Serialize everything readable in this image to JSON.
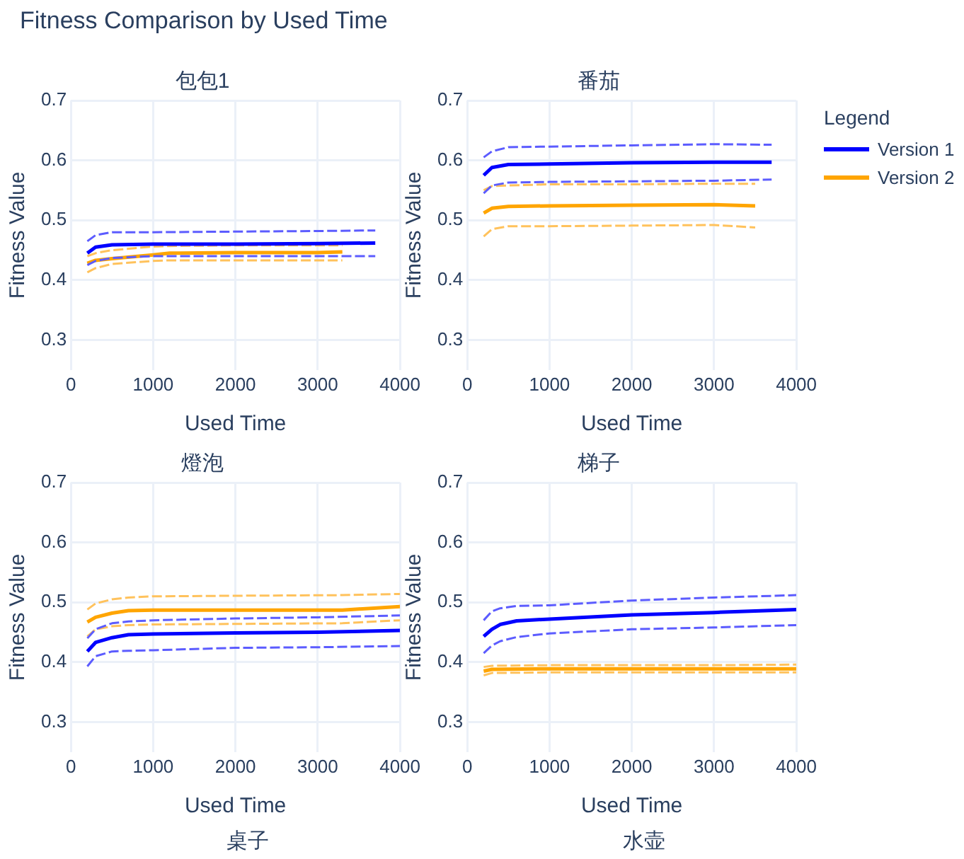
{
  "chart_data": [
    {
      "type": "line",
      "title": "包包1",
      "annotations": [
        "Fitness Comparison by Used Time"
      ],
      "xlabel": "Used Time",
      "ylabel": "Fitness Value",
      "xlim": [
        0,
        4000
      ],
      "xticks": [
        0,
        1000,
        2000,
        3000,
        4000
      ],
      "ylim": [
        0.25,
        0.7
      ],
      "yticks": [
        0.3,
        0.4,
        0.5,
        0.6,
        0.7
      ],
      "grid": true,
      "series": [
        {
          "color": "#0000ff",
          "x": [
            200,
            300,
            500,
            1000,
            2000,
            3000,
            3700
          ],
          "values": [
            0.445,
            0.455,
            0.459,
            0.46,
            0.46,
            0.461,
            0.462
          ]
        },
        {
          "color": "#5c5cff",
          "line_style": "dashed",
          "x": [
            200,
            300,
            500,
            1000,
            2000,
            3000,
            3700
          ],
          "values": [
            0.465,
            0.475,
            0.48,
            0.48,
            0.481,
            0.482,
            0.483
          ]
        },
        {
          "color": "#5c5cff",
          "line_style": "dashed",
          "x": [
            200,
            300,
            500,
            1000,
            2000,
            3000,
            3700
          ],
          "values": [
            0.425,
            0.432,
            0.437,
            0.44,
            0.44,
            0.44,
            0.44
          ]
        },
        {
          "color": "#ffa500",
          "x": [
            200,
            300,
            500,
            1000,
            1200,
            2000,
            3000,
            3300
          ],
          "values": [
            0.428,
            0.433,
            0.436,
            0.442,
            0.445,
            0.446,
            0.446,
            0.447
          ]
        },
        {
          "color": "#ffc25c",
          "line_style": "dashed",
          "x": [
            200,
            300,
            500,
            1000,
            1200,
            2000,
            3000,
            3300
          ],
          "values": [
            0.44,
            0.445,
            0.45,
            0.456,
            0.457,
            0.458,
            0.458,
            0.458
          ]
        },
        {
          "color": "#ffc25c",
          "line_style": "dashed",
          "x": [
            200,
            300,
            500,
            1000,
            1200,
            2000,
            3000,
            3300
          ],
          "values": [
            0.413,
            0.42,
            0.427,
            0.432,
            0.433,
            0.433,
            0.433,
            0.433
          ]
        }
      ]
    },
    {
      "type": "line",
      "title": "番茄",
      "xlabel": "Used Time",
      "ylabel": "Fitness Value",
      "xlim": [
        0,
        4000
      ],
      "xticks": [
        0,
        1000,
        2000,
        3000,
        4000
      ],
      "ylim": [
        0.25,
        0.7
      ],
      "yticks": [
        0.3,
        0.4,
        0.5,
        0.6,
        0.7
      ],
      "grid": true,
      "legend": "right",
      "legend_title": "Legend",
      "series": [
        {
          "name": "Version 1",
          "color": "#0000ff",
          "x": [
            200,
            300,
            500,
            1000,
            2000,
            3000,
            3700
          ],
          "values": [
            0.575,
            0.588,
            0.593,
            0.594,
            0.596,
            0.597,
            0.597
          ]
        },
        {
          "color": "#5c5cff",
          "line_style": "dashed",
          "x": [
            200,
            300,
            500,
            1000,
            2000,
            3000,
            3700
          ],
          "values": [
            0.605,
            0.615,
            0.622,
            0.623,
            0.625,
            0.627,
            0.626
          ]
        },
        {
          "color": "#5c5cff",
          "line_style": "dashed",
          "x": [
            200,
            300,
            500,
            1000,
            2000,
            3000,
            3700
          ],
          "values": [
            0.545,
            0.558,
            0.563,
            0.564,
            0.565,
            0.566,
            0.568
          ]
        },
        {
          "name": "Version 2",
          "color": "#ffa500",
          "x": [
            200,
            300,
            500,
            1000,
            2000,
            3000,
            3500
          ],
          "values": [
            0.512,
            0.52,
            0.523,
            0.524,
            0.525,
            0.526,
            0.524
          ]
        },
        {
          "color": "#ffc25c",
          "line_style": "dashed",
          "x": [
            200,
            300,
            500,
            1000,
            2000,
            3000,
            3500
          ],
          "values": [
            0.55,
            0.557,
            0.558,
            0.56,
            0.56,
            0.561,
            0.561
          ]
        },
        {
          "color": "#ffc25c",
          "line_style": "dashed",
          "x": [
            200,
            300,
            500,
            1000,
            2000,
            3000,
            3500
          ],
          "values": [
            0.473,
            0.485,
            0.49,
            0.49,
            0.491,
            0.492,
            0.488
          ]
        }
      ]
    },
    {
      "type": "line",
      "title": "燈泡",
      "xlabel": "Used Time",
      "ylabel": "Fitness Value",
      "xlim": [
        0,
        4000
      ],
      "xticks": [
        0,
        1000,
        2000,
        3000,
        4000
      ],
      "ylim": [
        0.25,
        0.7
      ],
      "yticks": [
        0.3,
        0.4,
        0.5,
        0.6,
        0.7
      ],
      "grid": true,
      "series": [
        {
          "color": "#0000ff",
          "x": [
            200,
            300,
            500,
            700,
            1000,
            2000,
            3000,
            4000
          ],
          "values": [
            0.418,
            0.433,
            0.441,
            0.446,
            0.447,
            0.449,
            0.45,
            0.453
          ]
        },
        {
          "color": "#5c5cff",
          "line_style": "dashed",
          "x": [
            200,
            300,
            500,
            700,
            1000,
            2000,
            3000,
            4000
          ],
          "values": [
            0.44,
            0.455,
            0.465,
            0.468,
            0.47,
            0.473,
            0.475,
            0.478
          ]
        },
        {
          "color": "#5c5cff",
          "line_style": "dashed",
          "x": [
            200,
            300,
            500,
            700,
            1000,
            2000,
            3000,
            4000
          ],
          "values": [
            0.393,
            0.41,
            0.418,
            0.419,
            0.42,
            0.424,
            0.425,
            0.427
          ]
        },
        {
          "color": "#ffa500",
          "x": [
            200,
            300,
            500,
            700,
            1000,
            2000,
            3300,
            4000
          ],
          "values": [
            0.467,
            0.475,
            0.482,
            0.486,
            0.487,
            0.487,
            0.487,
            0.493
          ]
        },
        {
          "color": "#ffc25c",
          "line_style": "dashed",
          "x": [
            200,
            300,
            500,
            700,
            1000,
            2000,
            3300,
            4000
          ],
          "values": [
            0.488,
            0.498,
            0.505,
            0.508,
            0.51,
            0.511,
            0.512,
            0.514
          ]
        },
        {
          "color": "#ffc25c",
          "line_style": "dashed",
          "x": [
            200,
            300,
            500,
            700,
            1000,
            2000,
            3300,
            4000
          ],
          "values": [
            0.443,
            0.455,
            0.46,
            0.462,
            0.463,
            0.464,
            0.465,
            0.47
          ]
        }
      ]
    },
    {
      "type": "line",
      "title": "梯子",
      "xlabel": "Used Time",
      "ylabel": "Fitness Value",
      "xlim": [
        0,
        4000
      ],
      "xticks": [
        0,
        1000,
        2000,
        3000,
        4000
      ],
      "ylim": [
        0.25,
        0.7
      ],
      "yticks": [
        0.3,
        0.4,
        0.5,
        0.6,
        0.7
      ],
      "grid": true,
      "series": [
        {
          "color": "#0000ff",
          "x": [
            200,
            300,
            400,
            600,
            1000,
            2000,
            3000,
            4000
          ],
          "values": [
            0.443,
            0.455,
            0.463,
            0.469,
            0.472,
            0.479,
            0.483,
            0.488
          ]
        },
        {
          "color": "#5c5cff",
          "line_style": "dashed",
          "x": [
            200,
            300,
            400,
            600,
            1000,
            2000,
            3000,
            4000
          ],
          "values": [
            0.47,
            0.485,
            0.49,
            0.494,
            0.495,
            0.503,
            0.508,
            0.512
          ]
        },
        {
          "color": "#5c5cff",
          "line_style": "dashed",
          "x": [
            200,
            300,
            400,
            600,
            1000,
            2000,
            3000,
            4000
          ],
          "values": [
            0.415,
            0.428,
            0.435,
            0.442,
            0.448,
            0.455,
            0.458,
            0.462
          ]
        },
        {
          "color": "#ffa500",
          "x": [
            200,
            300,
            1000,
            2000,
            3000,
            4000
          ],
          "values": [
            0.385,
            0.388,
            0.389,
            0.389,
            0.389,
            0.389
          ]
        },
        {
          "color": "#ffc25c",
          "line_style": "dashed",
          "x": [
            200,
            300,
            1000,
            2000,
            3000,
            4000
          ],
          "values": [
            0.392,
            0.394,
            0.395,
            0.395,
            0.395,
            0.396
          ]
        },
        {
          "color": "#ffc25c",
          "line_style": "dashed",
          "x": [
            200,
            300,
            1000,
            2000,
            3000,
            4000
          ],
          "values": [
            0.378,
            0.382,
            0.383,
            0.383,
            0.383,
            0.383
          ]
        }
      ]
    },
    {
      "type": "other",
      "title": "桌子"
    },
    {
      "type": "other",
      "title": "水壶"
    }
  ]
}
